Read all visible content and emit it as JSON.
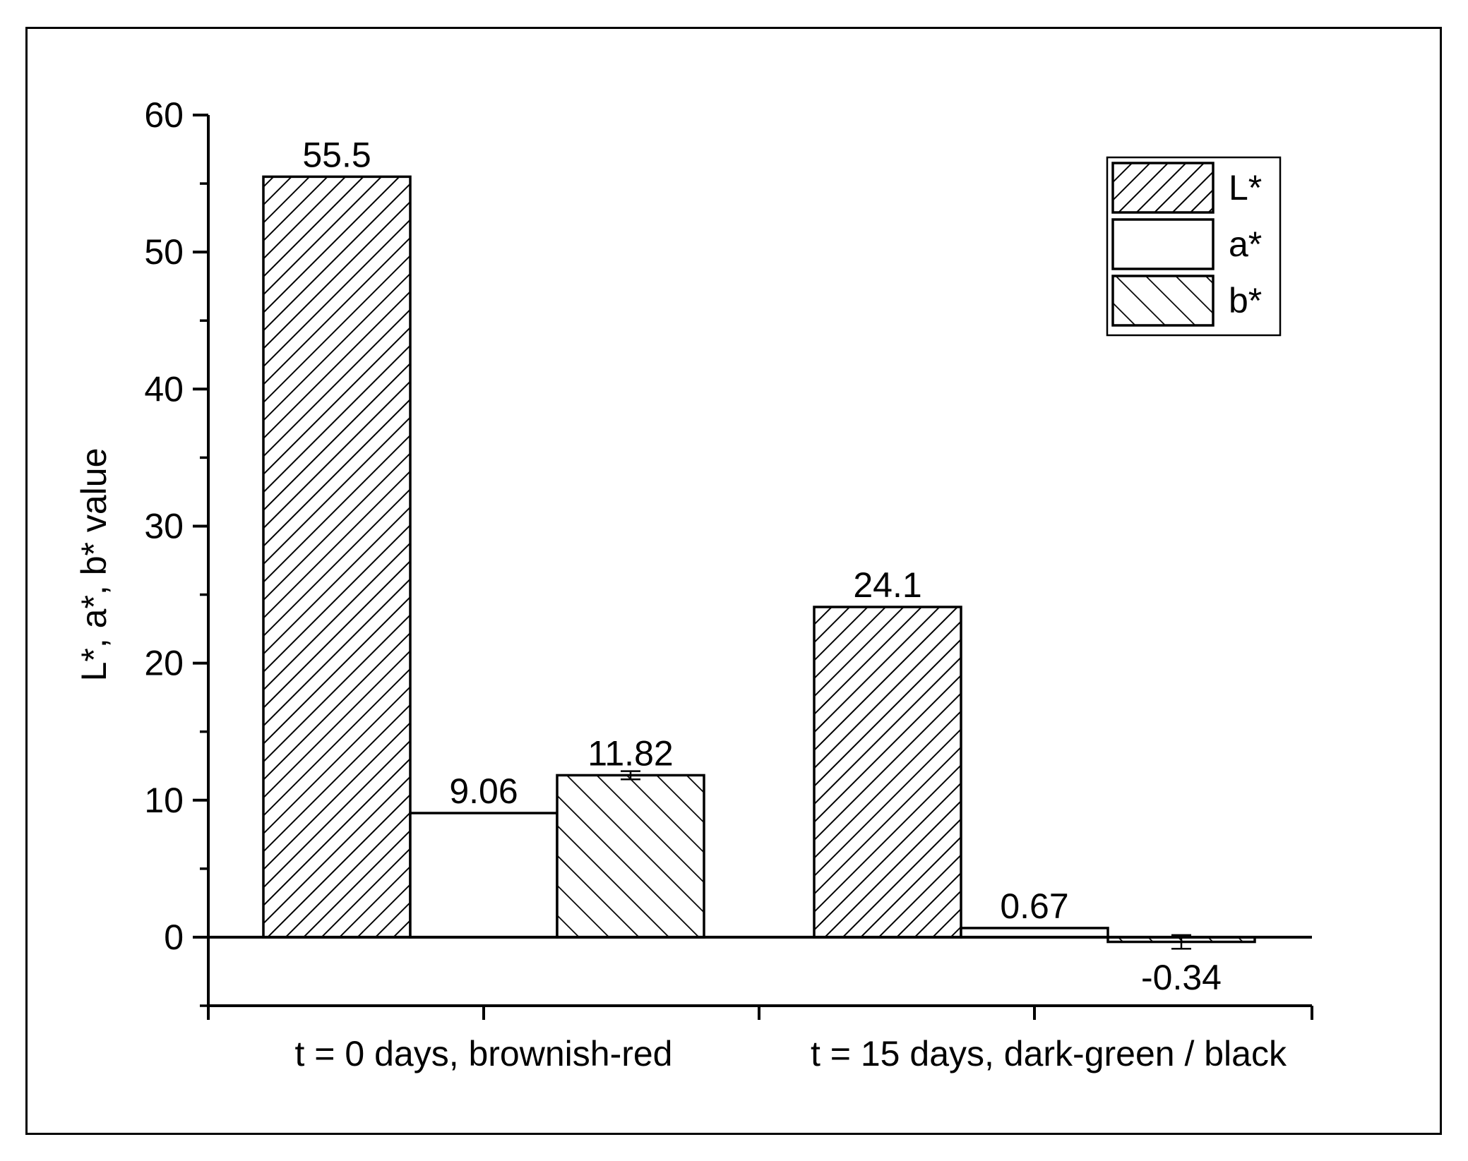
{
  "chart_data": {
    "type": "bar",
    "title": "",
    "xlabel": "",
    "ylabel": "L*, a*, b* value",
    "ylim": [
      -5,
      60
    ],
    "yticks": [
      0,
      10,
      20,
      30,
      40,
      50,
      60
    ],
    "grid": false,
    "legend_position": "top-right",
    "categories": [
      "t = 0 days, brownish-red",
      "t = 15 days, dark-green / black"
    ],
    "series": [
      {
        "name": "L*",
        "pattern": "hatch-forward",
        "values": [
          55.5,
          24.1
        ],
        "labels": [
          "55.5",
          "24.1"
        ],
        "errors": [
          0,
          0
        ]
      },
      {
        "name": "a*",
        "pattern": "none",
        "values": [
          9.06,
          0.67
        ],
        "labels": [
          "9.06",
          "0.67"
        ],
        "errors": [
          0,
          0
        ]
      },
      {
        "name": "b*",
        "pattern": "hatch-backward",
        "values": [
          11.82,
          -0.34
        ],
        "labels": [
          "11.82",
          "-0.34"
        ],
        "errors": [
          0.3,
          0.5
        ]
      }
    ]
  }
}
